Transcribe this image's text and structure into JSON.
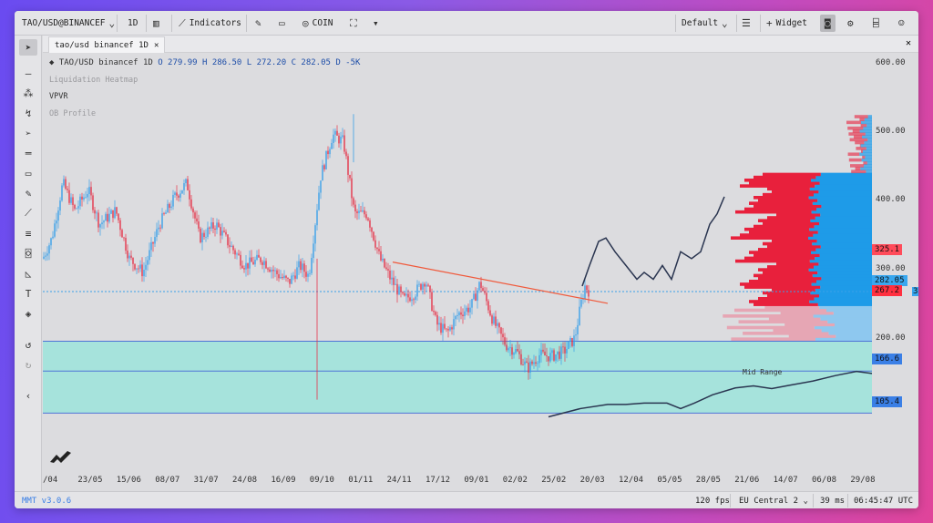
{
  "topbar": {
    "symbol": "TAO/USD@BINANCEF",
    "interval": "1D",
    "indicators": "Indicators",
    "coin": "COIN",
    "layout": "Default",
    "widget": "Widget"
  },
  "tab": {
    "label": "tao/usd binancef 1D"
  },
  "legend": {
    "name": "TAO/USD binancef 1D",
    "o": "O 279.99",
    "h": "H 286.50",
    "l": "L 272.20",
    "c": "C 282.05",
    "d": "D -5K",
    "indicators": [
      "Liquidation Heatmap",
      "VPVR",
      "OB Profile"
    ]
  },
  "y_axis": {
    "ticks": [
      "600.00",
      "500.00",
      "400.00",
      "300.00",
      "200.00"
    ]
  },
  "tags": {
    "t325": "325.1",
    "t282": "282.05",
    "t267": "267.2",
    "t267b": "3",
    "t166": "166.6",
    "t105": "105.4"
  },
  "x_axis": {
    "ticks": [
      "/04",
      "23/05",
      "15/06",
      "08/07",
      "31/07",
      "24/08",
      "16/09",
      "09/10",
      "01/11",
      "24/11",
      "17/12",
      "09/01",
      "02/02",
      "25/02",
      "20/03",
      "12/04",
      "05/05",
      "28/05",
      "21/06",
      "14/07",
      "06/08",
      "29/08"
    ]
  },
  "mid_range_label": "Mid Range",
  "colors": {
    "up": "#3aa0e8",
    "down": "#e5344a",
    "zone": "#a6e3dc",
    "trend": "#f05a3c",
    "ask": "#e8203c",
    "bid": "#1e9be8"
  },
  "status": {
    "version": "MMT v3.0.6",
    "fps": "120 fps",
    "region": "EU Central 2",
    "latency": "39 ms",
    "clock": "06:45:47 UTC"
  }
}
